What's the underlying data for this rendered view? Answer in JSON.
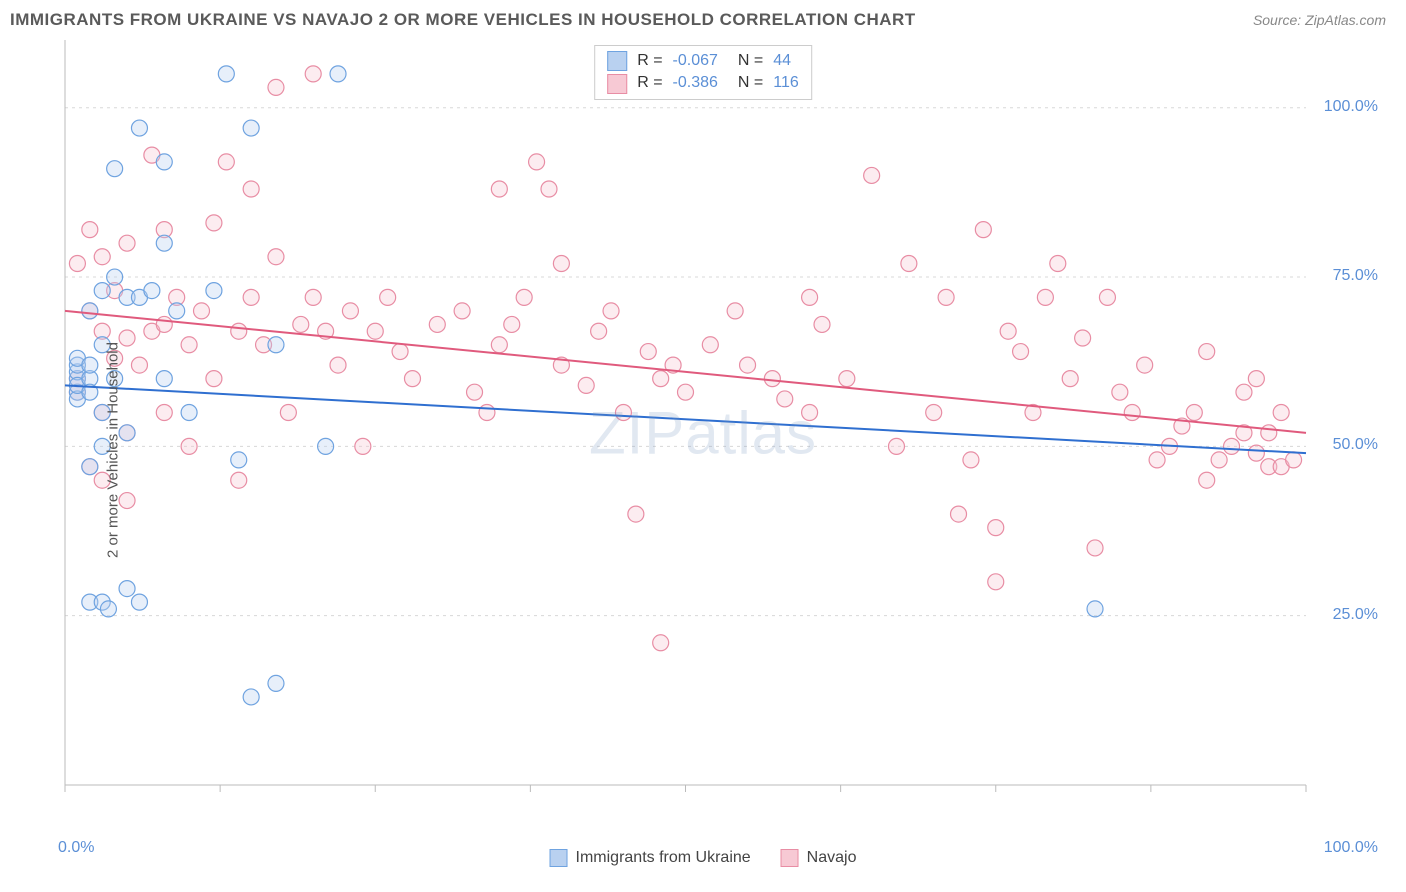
{
  "title": "IMMIGRANTS FROM UKRAINE VS NAVAJO 2 OR MORE VEHICLES IN HOUSEHOLD CORRELATION CHART",
  "source": "Source: ZipAtlas.com",
  "watermark": "ZIPatlas",
  "ylabel": "2 or more Vehicles in Household",
  "chart": {
    "type": "scatter",
    "xlim": [
      0,
      100
    ],
    "ylim": [
      0,
      110
    ],
    "grid_y": [
      25,
      50,
      75,
      100
    ],
    "grid_color": "#d8d8d8",
    "axis_color": "#bbbbbb",
    "background": "#ffffff",
    "x_tick_label_min": "0.0%",
    "x_tick_label_max": "100.0%",
    "y_tick_labels": [
      "25.0%",
      "50.0%",
      "75.0%",
      "100.0%"
    ],
    "axis_label_color": "#5b8fd6",
    "marker_radius": 8,
    "marker_opacity": 0.35,
    "line_width": 2
  },
  "series": [
    {
      "name": "Immigrants from Ukraine",
      "color_fill": "#b9d1f0",
      "color_stroke": "#6fa3e0",
      "line_color": "#2f6fd0",
      "R": "-0.067",
      "N": "44",
      "trend": {
        "x1": 0,
        "y1": 59,
        "x2": 100,
        "y2": 49
      },
      "points": [
        [
          1,
          60
        ],
        [
          1,
          61
        ],
        [
          1,
          58
        ],
        [
          1,
          62
        ],
        [
          1,
          57
        ],
        [
          1,
          63
        ],
        [
          1,
          59
        ],
        [
          2,
          60
        ],
        [
          2,
          58
        ],
        [
          2,
          62
        ],
        [
          2,
          70
        ],
        [
          2,
          47
        ],
        [
          2,
          27
        ],
        [
          3,
          73
        ],
        [
          3,
          65
        ],
        [
          3,
          55
        ],
        [
          3,
          50
        ],
        [
          3,
          27
        ],
        [
          3.5,
          26
        ],
        [
          4,
          91
        ],
        [
          4,
          75
        ],
        [
          4,
          60
        ],
        [
          5,
          72
        ],
        [
          5,
          52
        ],
        [
          5,
          29
        ],
        [
          6,
          97
        ],
        [
          6,
          72
        ],
        [
          6,
          27
        ],
        [
          7,
          73
        ],
        [
          8,
          92
        ],
        [
          8,
          80
        ],
        [
          8,
          60
        ],
        [
          9,
          70
        ],
        [
          10,
          55
        ],
        [
          12,
          73
        ],
        [
          13,
          105
        ],
        [
          14,
          48
        ],
        [
          15,
          97
        ],
        [
          15,
          13
        ],
        [
          17,
          15
        ],
        [
          17,
          65
        ],
        [
          21,
          50
        ],
        [
          22,
          105
        ],
        [
          83,
          26
        ]
      ]
    },
    {
      "name": "Navajo",
      "color_fill": "#f7c9d4",
      "color_stroke": "#e88da4",
      "line_color": "#e05a7d",
      "R": "-0.386",
      "N": "116",
      "trend": {
        "x1": 0,
        "y1": 70,
        "x2": 100,
        "y2": 52
      },
      "points": [
        [
          1,
          60
        ],
        [
          1,
          77
        ],
        [
          1,
          58
        ],
        [
          2,
          82
        ],
        [
          2,
          70
        ],
        [
          2,
          47
        ],
        [
          3,
          78
        ],
        [
          3,
          67
        ],
        [
          3,
          55
        ],
        [
          3,
          45
        ],
        [
          4,
          73
        ],
        [
          4,
          63
        ],
        [
          5,
          80
        ],
        [
          5,
          66
        ],
        [
          5,
          52
        ],
        [
          5,
          42
        ],
        [
          6,
          62
        ],
        [
          7,
          93
        ],
        [
          7,
          67
        ],
        [
          8,
          82
        ],
        [
          8,
          68
        ],
        [
          8,
          55
        ],
        [
          9,
          72
        ],
        [
          10,
          65
        ],
        [
          10,
          50
        ],
        [
          11,
          70
        ],
        [
          12,
          83
        ],
        [
          12,
          60
        ],
        [
          13,
          92
        ],
        [
          14,
          67
        ],
        [
          14,
          45
        ],
        [
          15,
          88
        ],
        [
          15,
          72
        ],
        [
          16,
          65
        ],
        [
          17,
          103
        ],
        [
          17,
          78
        ],
        [
          18,
          55
        ],
        [
          19,
          68
        ],
        [
          20,
          72
        ],
        [
          20,
          105
        ],
        [
          21,
          67
        ],
        [
          22,
          62
        ],
        [
          23,
          70
        ],
        [
          24,
          50
        ],
        [
          25,
          67
        ],
        [
          26,
          72
        ],
        [
          27,
          64
        ],
        [
          28,
          60
        ],
        [
          30,
          68
        ],
        [
          32,
          70
        ],
        [
          33,
          58
        ],
        [
          34,
          55
        ],
        [
          35,
          88
        ],
        [
          35,
          65
        ],
        [
          36,
          68
        ],
        [
          37,
          72
        ],
        [
          38,
          92
        ],
        [
          39,
          88
        ],
        [
          40,
          77
        ],
        [
          40,
          62
        ],
        [
          42,
          59
        ],
        [
          43,
          67
        ],
        [
          44,
          70
        ],
        [
          45,
          55
        ],
        [
          46,
          40
        ],
        [
          47,
          64
        ],
        [
          48,
          60
        ],
        [
          48,
          21
        ],
        [
          49,
          62
        ],
        [
          50,
          58
        ],
        [
          52,
          65
        ],
        [
          54,
          70
        ],
        [
          55,
          62
        ],
        [
          57,
          60
        ],
        [
          58,
          57
        ],
        [
          60,
          72
        ],
        [
          60,
          55
        ],
        [
          61,
          68
        ],
        [
          63,
          60
        ],
        [
          65,
          90
        ],
        [
          67,
          50
        ],
        [
          68,
          77
        ],
        [
          70,
          55
        ],
        [
          71,
          72
        ],
        [
          72,
          40
        ],
        [
          73,
          48
        ],
        [
          74,
          82
        ],
        [
          75,
          38
        ],
        [
          75,
          30
        ],
        [
          76,
          67
        ],
        [
          77,
          64
        ],
        [
          78,
          55
        ],
        [
          79,
          72
        ],
        [
          80,
          77
        ],
        [
          81,
          60
        ],
        [
          82,
          66
        ],
        [
          83,
          35
        ],
        [
          84,
          72
        ],
        [
          85,
          58
        ],
        [
          86,
          55
        ],
        [
          87,
          62
        ],
        [
          88,
          48
        ],
        [
          89,
          50
        ],
        [
          90,
          53
        ],
        [
          91,
          55
        ],
        [
          92,
          45
        ],
        [
          92,
          64
        ],
        [
          93,
          48
        ],
        [
          94,
          50
        ],
        [
          95,
          52
        ],
        [
          95,
          58
        ],
        [
          96,
          49
        ],
        [
          96,
          60
        ],
        [
          97,
          47
        ],
        [
          97,
          52
        ],
        [
          98,
          47
        ],
        [
          98,
          55
        ],
        [
          99,
          48
        ]
      ]
    }
  ],
  "legend_bottom": [
    {
      "label": "Immigrants from Ukraine",
      "fill": "#b9d1f0",
      "stroke": "#6fa3e0"
    },
    {
      "label": "Navajo",
      "fill": "#f7c9d4",
      "stroke": "#e88da4"
    }
  ]
}
